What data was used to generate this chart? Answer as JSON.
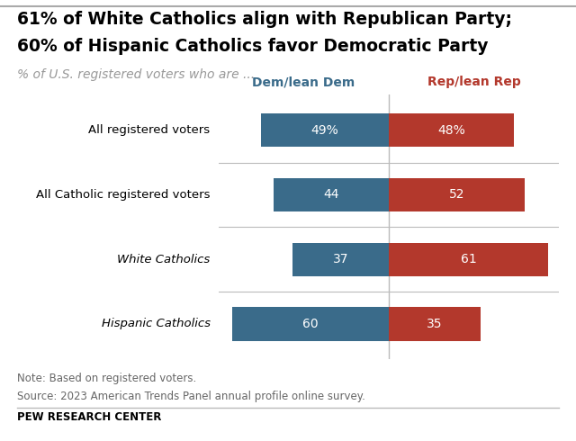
{
  "title_line1": "61% of White Catholics align with Republican Party;",
  "title_line2": "60% of Hispanic Catholics favor Democratic Party",
  "subtitle": "% of U.S. registered voters who are ...",
  "col_header_dem": "Dem/lean Dem",
  "col_header_rep": "Rep/lean Rep",
  "categories": [
    "All registered voters",
    "All Catholic registered voters",
    "White Catholics",
    "Hispanic Catholics"
  ],
  "italic_rows": [
    false,
    false,
    true,
    true
  ],
  "dem_values": [
    49,
    44,
    37,
    60
  ],
  "rep_values": [
    48,
    52,
    61,
    35
  ],
  "dem_labels": [
    "49%",
    "44",
    "37",
    "60"
  ],
  "rep_labels": [
    "48%",
    "52",
    "61",
    "35"
  ],
  "dem_color": "#3a6b8a",
  "rep_color": "#b3382c",
  "text_color_white": "#ffffff",
  "header_dem_color": "#3a6b8a",
  "header_rep_color": "#b3382c",
  "note_line1": "Note: Based on registered voters.",
  "note_line2": "Source: 2023 American Trends Panel annual profile online survey.",
  "footer": "PEW RESEARCH CENTER",
  "bg_color": "#ffffff",
  "divider_color": "#bbbbbb",
  "title_fontsize": 13.5,
  "subtitle_fontsize": 10,
  "header_fontsize": 10,
  "label_fontsize": 10,
  "cat_fontsize": 9.5,
  "note_fontsize": 8.5,
  "footer_fontsize": 8.5,
  "max_scale": 65,
  "bar_height": 0.52,
  "top_border_color": "#aaaaaa"
}
